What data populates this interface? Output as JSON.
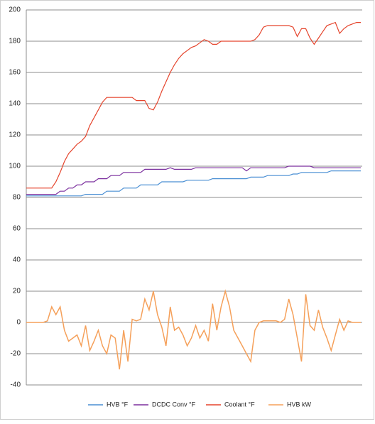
{
  "chart_data": {
    "type": "line",
    "ylim": [
      -40,
      200
    ],
    "yticks": [
      -40,
      -20,
      0,
      20,
      40,
      60,
      80,
      100,
      120,
      140,
      160,
      180,
      200
    ],
    "grid": true,
    "legend": "bottom",
    "series": [
      {
        "name": "HVB °F",
        "color": "#4a8fd4",
        "values": [
          81,
          81,
          81,
          81,
          81,
          81,
          81,
          81,
          81,
          81,
          81,
          81,
          81,
          81,
          82,
          82,
          82,
          82,
          82,
          84,
          84,
          84,
          84,
          86,
          86,
          86,
          86,
          88,
          88,
          88,
          88,
          88,
          90,
          90,
          90,
          90,
          90,
          90,
          91,
          91,
          91,
          91,
          91,
          91,
          92,
          92,
          92,
          92,
          92,
          92,
          92,
          92,
          92,
          93,
          93,
          93,
          93,
          94,
          94,
          94,
          94,
          94,
          94,
          95,
          95,
          96,
          96,
          96,
          96,
          96,
          96,
          96,
          97,
          97,
          97,
          97,
          97,
          97,
          97,
          97
        ]
      },
      {
        "name": "DCDC Conv °F",
        "color": "#7b2f9e",
        "values": [
          82,
          82,
          82,
          82,
          82,
          82,
          82,
          82,
          84,
          84,
          86,
          86,
          88,
          88,
          90,
          90,
          90,
          92,
          92,
          92,
          94,
          94,
          94,
          96,
          96,
          96,
          96,
          96,
          98,
          98,
          98,
          98,
          98,
          98,
          99,
          98,
          98,
          98,
          98,
          98,
          99,
          99,
          99,
          99,
          99,
          99,
          99,
          99,
          99,
          99,
          99,
          99,
          97,
          99,
          99,
          99,
          99,
          99,
          99,
          99,
          99,
          99,
          100,
          100,
          100,
          100,
          100,
          100,
          99,
          99,
          99,
          99,
          99,
          99,
          99,
          99,
          99,
          99,
          99,
          99
        ]
      },
      {
        "name": "Coolant °F",
        "color": "#e5442c",
        "values": [
          86,
          86,
          86,
          86,
          86,
          86,
          86,
          90,
          96,
          103,
          108,
          111,
          114,
          116,
          119,
          126,
          131,
          136,
          141,
          144,
          144,
          144,
          144,
          144,
          144,
          144,
          142,
          142,
          142,
          137,
          136,
          141,
          148,
          154,
          160,
          165,
          169,
          172,
          174,
          176,
          177,
          179,
          181,
          180,
          178,
          178,
          180,
          180,
          180,
          180,
          180,
          180,
          180,
          180,
          181,
          184,
          189,
          190,
          190,
          190,
          190,
          190,
          190,
          189,
          183,
          188,
          188,
          182,
          178,
          182,
          186,
          190,
          191,
          192,
          185,
          188,
          190,
          191,
          192,
          192
        ]
      },
      {
        "name": "HVB kW",
        "color": "#f5a05a",
        "values": [
          0,
          0,
          0,
          0,
          0,
          1,
          10,
          5,
          10,
          -5,
          -12,
          -10,
          -8,
          -15,
          -2,
          -18,
          -12,
          -5,
          -15,
          -20,
          -8,
          -10,
          -30,
          -5,
          -25,
          2,
          1,
          2,
          15,
          8,
          20,
          5,
          -3,
          -15,
          10,
          -5,
          -3,
          -8,
          -15,
          -10,
          -2,
          -10,
          -5,
          -12,
          12,
          -5,
          10,
          20,
          10,
          -5,
          -10,
          -15,
          -20,
          -25,
          -5,
          0,
          1,
          1,
          1,
          1,
          0,
          2,
          15,
          5,
          -10,
          -25,
          18,
          -2,
          -5,
          8,
          -3,
          -10,
          -18,
          -8,
          2,
          -5,
          1,
          0,
          0,
          0
        ]
      }
    ]
  }
}
